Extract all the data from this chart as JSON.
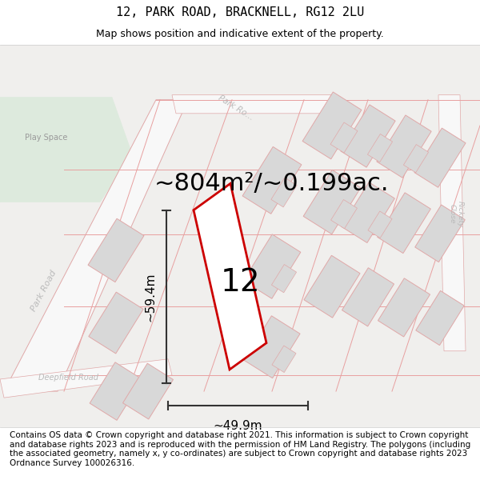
{
  "title": "12, PARK ROAD, BRACKNELL, RG12 2LU",
  "subtitle": "Map shows position and indicative extent of the property.",
  "area_label": "~804m²/~0.199ac.",
  "number_label": "12",
  "width_label": "~49.9m",
  "height_label": "~59.4m",
  "footer_text": "Contains OS data © Crown copyright and database right 2021. This information is subject to Crown copyright and database rights 2023 and is reproduced with the permission of HM Land Registry. The polygons (including the associated geometry, namely x, y co-ordinates) are subject to Crown copyright and database rights 2023 Ordnance Survey 100026316.",
  "map_bg": "#f0efed",
  "green_area_color": "#ddeadd",
  "road_color_fill": "#f8f8f8",
  "plot_line_color": "#cc0000",
  "dim_line_color": "#333333",
  "building_fill": "#d8d8d8",
  "building_edge": "#e0a8a8",
  "road_edge": "#e0a8a8",
  "title_fontsize": 11,
  "subtitle_fontsize": 9,
  "area_fontsize": 22,
  "number_fontsize": 28,
  "dim_fontsize": 11,
  "footer_fontsize": 7.5
}
